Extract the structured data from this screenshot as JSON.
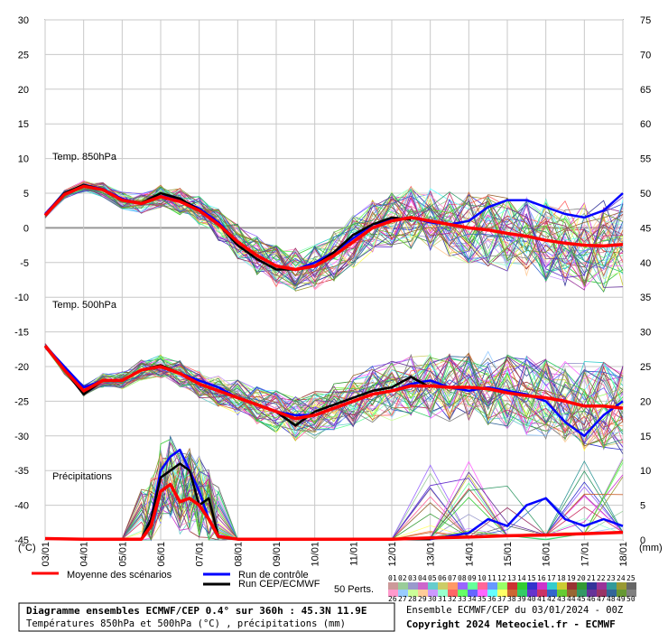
{
  "chart_data": {
    "type": "line",
    "left_ticks": [
      "30",
      "25",
      "20",
      "15",
      "10",
      "5",
      "0",
      "-5",
      "-10",
      "-15",
      "-20",
      "-25",
      "-30",
      "-35",
      "-40",
      "-45"
    ],
    "right_ticks": [
      "75",
      "70",
      "65",
      "60",
      "55",
      "50",
      "45",
      "40",
      "35",
      "30",
      "25",
      "20",
      "15",
      "10",
      "5",
      "0"
    ],
    "left_unit": "(°C)",
    "right_unit": "(mm)",
    "x_ticks": [
      "03/01",
      "04/01",
      "05/01",
      "06/01",
      "07/01",
      "08/01",
      "09/01",
      "10/01",
      "11/01",
      "12/01",
      "13/01",
      "14/01",
      "15/01",
      "16/01",
      "17/01",
      "18/01"
    ],
    "x_range_days": [
      0,
      15
    ],
    "left_range_c": [
      -45,
      30
    ],
    "right_range_mm": [
      0,
      75
    ],
    "grid": true,
    "panel_labels": {
      "t850": "Temp. 850hPa",
      "t500": "Temp. 500hPa",
      "precip": "Précipitations"
    },
    "series": [
      {
        "name": "Moyenne des scénarios",
        "color": "#ff0000",
        "t850": [
          [
            0,
            1.8
          ],
          [
            0.5,
            4.8
          ],
          [
            1,
            6
          ],
          [
            1.5,
            5.5
          ],
          [
            2,
            4
          ],
          [
            2.5,
            3.5
          ],
          [
            3,
            4.5
          ],
          [
            3.5,
            3.8
          ],
          [
            4,
            2.5
          ],
          [
            4.5,
            0.5
          ],
          [
            5,
            -2
          ],
          [
            5.5,
            -4
          ],
          [
            6,
            -5.5
          ],
          [
            6.5,
            -6
          ],
          [
            7,
            -5.5
          ],
          [
            7.5,
            -4
          ],
          [
            8,
            -2
          ],
          [
            8.5,
            0
          ],
          [
            9,
            1
          ],
          [
            9.5,
            1.5
          ],
          [
            10,
            1
          ],
          [
            10.5,
            0.5
          ],
          [
            11,
            0
          ],
          [
            11.5,
            -0.3
          ],
          [
            12,
            -0.8
          ],
          [
            12.5,
            -1.2
          ],
          [
            13,
            -1.8
          ],
          [
            13.5,
            -2.2
          ],
          [
            14,
            -2.5
          ],
          [
            14.5,
            -2.6
          ],
          [
            15,
            -2.4
          ]
        ],
        "t500": [
          [
            0,
            -17
          ],
          [
            0.5,
            -20.5
          ],
          [
            1,
            -23.5
          ],
          [
            1.5,
            -22
          ],
          [
            2,
            -22
          ],
          [
            2.5,
            -20.5
          ],
          [
            3,
            -20
          ],
          [
            3.5,
            -21
          ],
          [
            4,
            -22.5
          ],
          [
            4.5,
            -23.5
          ],
          [
            5,
            -24.5
          ],
          [
            5.5,
            -25.5
          ],
          [
            6,
            -26.5
          ],
          [
            6.5,
            -27.5
          ],
          [
            7,
            -27
          ],
          [
            7.5,
            -26
          ],
          [
            8,
            -25
          ],
          [
            8.5,
            -24
          ],
          [
            9,
            -23.5
          ],
          [
            9.5,
            -22.8
          ],
          [
            10,
            -22.8
          ],
          [
            10.5,
            -23
          ],
          [
            11,
            -23
          ],
          [
            11.5,
            -23.2
          ],
          [
            12,
            -23.8
          ],
          [
            12.5,
            -24.2
          ],
          [
            13,
            -24.5
          ],
          [
            13.5,
            -25
          ],
          [
            14,
            -25.7
          ],
          [
            14.5,
            -25.7
          ],
          [
            15,
            -26
          ]
        ],
        "precip": [
          [
            0,
            -44.8
          ],
          [
            1,
            -44.9
          ],
          [
            2,
            -44.9
          ],
          [
            2.5,
            -44.9
          ],
          [
            2.75,
            -43
          ],
          [
            3,
            -38
          ],
          [
            3.25,
            -37
          ],
          [
            3.5,
            -39.5
          ],
          [
            3.75,
            -39
          ],
          [
            4,
            -40
          ],
          [
            4.25,
            -42
          ],
          [
            4.5,
            -44.5
          ],
          [
            5,
            -44.9
          ],
          [
            7,
            -44.9
          ],
          [
            9,
            -44.9
          ],
          [
            10,
            -44.7
          ],
          [
            11,
            -44.6
          ],
          [
            12,
            -44.4
          ],
          [
            13,
            -44.3
          ],
          [
            14,
            -44.1
          ],
          [
            15,
            -43.9
          ]
        ]
      },
      {
        "name": "Run de contrôle",
        "color": "#0000ff",
        "t850": [
          [
            0,
            2
          ],
          [
            0.5,
            5
          ],
          [
            1,
            6.2
          ],
          [
            1.5,
            5.6
          ],
          [
            2,
            4.2
          ],
          [
            2.5,
            3.5
          ],
          [
            3,
            4.6
          ],
          [
            3.5,
            4
          ],
          [
            4,
            2.8
          ],
          [
            4.5,
            0.8
          ],
          [
            5,
            -2
          ],
          [
            5.5,
            -4
          ],
          [
            6,
            -5.5
          ],
          [
            6.5,
            -6
          ],
          [
            7,
            -5
          ],
          [
            7.5,
            -3.5
          ],
          [
            8,
            -1.5
          ],
          [
            8.5,
            0.5
          ],
          [
            9,
            1.2
          ],
          [
            9.5,
            1.5
          ],
          [
            10,
            0.8
          ],
          [
            10.5,
            0.5
          ],
          [
            11,
            1
          ],
          [
            11.5,
            3
          ],
          [
            12,
            4
          ],
          [
            12.5,
            4
          ],
          [
            13,
            3
          ],
          [
            13.5,
            2
          ],
          [
            14,
            1.5
          ],
          [
            14.5,
            2.5
          ],
          [
            15,
            5
          ]
        ],
        "t500": [
          [
            0,
            -17
          ],
          [
            0.5,
            -20
          ],
          [
            1,
            -23
          ],
          [
            1.5,
            -22
          ],
          [
            2,
            -22
          ],
          [
            2.5,
            -20.5
          ],
          [
            3,
            -20
          ],
          [
            3.5,
            -21
          ],
          [
            4,
            -22
          ],
          [
            4.5,
            -23
          ],
          [
            5,
            -24.5
          ],
          [
            5.5,
            -25.5
          ],
          [
            6,
            -26.5
          ],
          [
            6.5,
            -27
          ],
          [
            7,
            -27
          ],
          [
            7.5,
            -26
          ],
          [
            8,
            -25
          ],
          [
            8.5,
            -24
          ],
          [
            9,
            -23.5
          ],
          [
            9.5,
            -22.5
          ],
          [
            10,
            -22
          ],
          [
            10.5,
            -23
          ],
          [
            11,
            -23.5
          ],
          [
            11.5,
            -23
          ],
          [
            12,
            -23.5
          ],
          [
            12.5,
            -24
          ],
          [
            13,
            -25
          ],
          [
            13.5,
            -28
          ],
          [
            14,
            -30
          ],
          [
            14.5,
            -27
          ],
          [
            15,
            -25
          ]
        ],
        "precip": [
          [
            0,
            -44.8
          ],
          [
            1,
            -44.9
          ],
          [
            2,
            -44.9
          ],
          [
            2.5,
            -44.9
          ],
          [
            2.75,
            -42
          ],
          [
            3,
            -35
          ],
          [
            3.25,
            -33
          ],
          [
            3.5,
            -32
          ],
          [
            3.75,
            -35
          ],
          [
            4,
            -38
          ],
          [
            4.25,
            -42
          ],
          [
            4.5,
            -44.5
          ],
          [
            5,
            -44.9
          ],
          [
            10,
            -44.9
          ],
          [
            11,
            -44
          ],
          [
            11.5,
            -42
          ],
          [
            12,
            -43
          ],
          [
            12.5,
            -40
          ],
          [
            13,
            -39
          ],
          [
            13.5,
            -42
          ],
          [
            14,
            -43
          ],
          [
            14.5,
            -42
          ],
          [
            15,
            -43
          ]
        ]
      },
      {
        "name": "Run CEP/ECMWF",
        "color": "#000000",
        "t850": [
          [
            0,
            1.8
          ],
          [
            0.5,
            5
          ],
          [
            1,
            6.2
          ],
          [
            1.5,
            5.5
          ],
          [
            2,
            4
          ],
          [
            2.5,
            3.6
          ],
          [
            3,
            5
          ],
          [
            3.5,
            4.2
          ],
          [
            4,
            2.6
          ],
          [
            4.5,
            0.5
          ],
          [
            5,
            -2.5
          ],
          [
            5.5,
            -4.5
          ],
          [
            6,
            -6
          ],
          [
            6.5,
            -6
          ],
          [
            7,
            -5.5
          ],
          [
            7.5,
            -3.5
          ],
          [
            8,
            -1
          ],
          [
            8.5,
            0.5
          ],
          [
            9,
            1.5
          ],
          [
            9.5,
            1.2
          ]
        ],
        "t500": [
          [
            0,
            -17
          ],
          [
            0.5,
            -20.5
          ],
          [
            1,
            -24
          ],
          [
            1.5,
            -22
          ],
          [
            2,
            -22
          ],
          [
            2.5,
            -20.5
          ],
          [
            3,
            -19.8
          ],
          [
            3.5,
            -21
          ],
          [
            4,
            -22.5
          ],
          [
            4.5,
            -23.5
          ],
          [
            5,
            -24.5
          ],
          [
            5.5,
            -25.5
          ],
          [
            6,
            -26.5
          ],
          [
            6.5,
            -28.5
          ],
          [
            7,
            -26.5
          ],
          [
            7.5,
            -25.5
          ],
          [
            8,
            -24.5
          ],
          [
            8.5,
            -23.5
          ],
          [
            9,
            -23
          ],
          [
            9.5,
            -21.5
          ],
          [
            10,
            -23
          ]
        ],
        "precip": [
          [
            0,
            -44.8
          ],
          [
            1,
            -44.9
          ],
          [
            2,
            -44.9
          ],
          [
            2.5,
            -44.9
          ],
          [
            2.75,
            -42
          ],
          [
            3,
            -36
          ],
          [
            3.25,
            -35
          ],
          [
            3.5,
            -34
          ],
          [
            3.75,
            -35
          ],
          [
            4,
            -40
          ],
          [
            4.25,
            -39
          ],
          [
            4.5,
            -44.5
          ],
          [
            5,
            -44.9
          ],
          [
            10,
            -44.9
          ]
        ]
      }
    ]
  },
  "legend": {
    "mean": "Moyenne des scénarios",
    "control": "Run de contrôle",
    "ecmwf": "Run CEP/ECMWF",
    "perts_label": "50 Perts.",
    "row1": [
      "01",
      "02",
      "03",
      "04",
      "05",
      "06",
      "07",
      "08",
      "09",
      "10",
      "11",
      "12",
      "13",
      "14",
      "15",
      "16",
      "17",
      "18",
      "19",
      "20",
      "21",
      "22",
      "23",
      "24",
      "25"
    ],
    "row2": [
      "26",
      "27",
      "28",
      "29",
      "30",
      "31",
      "32",
      "33",
      "34",
      "35",
      "36",
      "37",
      "38",
      "39",
      "40",
      "41",
      "42",
      "43",
      "44",
      "45",
      "46",
      "47",
      "48",
      "49",
      "50"
    ],
    "colors": [
      "#cc9999",
      "#99cc99",
      "#9999cc",
      "#cc66cc",
      "#66cccc",
      "#cccc66",
      "#ff9966",
      "#9966ff",
      "#66ff99",
      "#ff6699",
      "#6699ff",
      "#99ff66",
      "#cc3333",
      "#33cc33",
      "#3333cc",
      "#cc33cc",
      "#33cccc",
      "#cccc33",
      "#993333",
      "#339933",
      "#333399",
      "#993399",
      "#339999",
      "#999933",
      "#666666",
      "#ff99cc",
      "#99ccff",
      "#ccff99",
      "#ffcc99",
      "#cc99ff",
      "#99ffcc",
      "#ff6666",
      "#66ff66",
      "#6666ff",
      "#ff66ff",
      "#66ffff",
      "#ffff66",
      "#cc6633",
      "#33cc66",
      "#6633cc",
      "#cc3366",
      "#3366cc",
      "#66cc33",
      "#996633",
      "#339966",
      "#663399",
      "#993366",
      "#336699",
      "#669933",
      "#808080"
    ]
  },
  "footer": {
    "title": "Diagramme ensembles ECMWF/CEP 0.4° sur 360h : 45.3N 11.9E",
    "subtitle": "Températures 850hPa et 500hPa (°C) , précipitations (mm)",
    "run_info": "Ensemble ECMWF/CEP du 03/01/2024 - 00Z",
    "copyright": "Copyright 2024 Meteociel.fr - ECMWF"
  }
}
